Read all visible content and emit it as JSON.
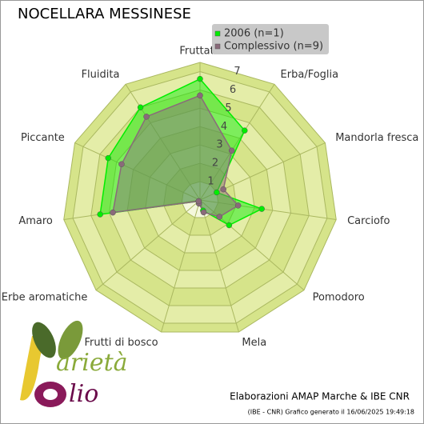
{
  "chart_data": {
    "type": "radar",
    "title": "NOCELLARA MESSINESE",
    "categories": [
      "Fruttato",
      "Erba/Foglia",
      "Mandorla fresca",
      "Carciofo",
      "Pomodoro",
      "Mela",
      "Frutti di bosco",
      "Erbe aromatiche",
      "Amaro",
      "Piccante",
      "Fluidita"
    ],
    "series": [
      {
        "name": "2006 (n=1)",
        "color": "#00ee00",
        "values": [
          6.6,
          4.5,
          1.0,
          3.4,
          2.1,
          0.6,
          0.2,
          0.1,
          5.5,
          5.5,
          6.0
        ]
      },
      {
        "name": "Complessivo (n=9)",
        "color": "#8a6a7a",
        "values": [
          5.7,
          3.2,
          1.4,
          2.1,
          1.4,
          0.7,
          0.2,
          0.1,
          4.8,
          4.7,
          5.4
        ]
      }
    ],
    "ylim": [
      0,
      7.5
    ],
    "yticks": [
      1,
      2,
      3,
      4,
      5,
      6,
      7
    ],
    "grid": true,
    "legend": "top-right",
    "credit": "Elaborazioni AMAP Marche & IBE CNR",
    "footnote": "(IBE - CNR) Grafico generato il 16/06/2025 19:49:18",
    "logo": [
      "arietà",
      "lio"
    ]
  }
}
